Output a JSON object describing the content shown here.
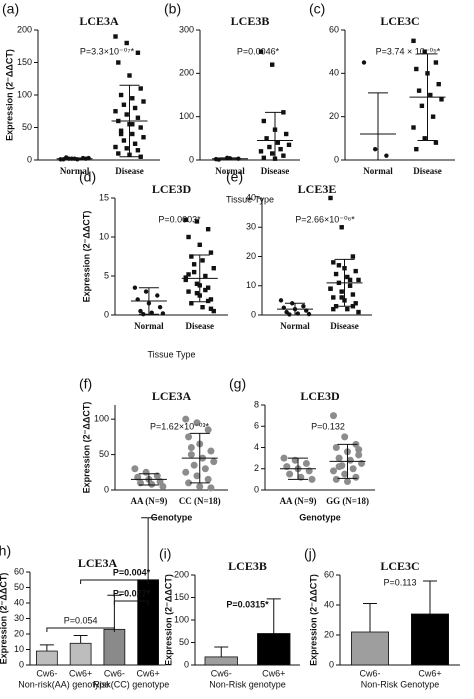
{
  "chart_data": [
    {
      "type": "strip",
      "label": "(a)",
      "title": "LCE3A",
      "annotation": "P=3.3×10⁻⁰⁷*",
      "ylabel": "Expression (2⁻ΔΔCT)",
      "ylim": [
        0,
        200
      ],
      "yticks": [
        0,
        50,
        100,
        150,
        200
      ],
      "groups": [
        {
          "name": "Normal",
          "marker": "circle",
          "color": "#111111",
          "values": [
            1,
            2,
            3,
            1,
            2,
            2,
            4,
            1,
            3,
            2
          ],
          "mean": 2,
          "sd": 1
        },
        {
          "name": "Disease",
          "marker": "square",
          "color": "#111111",
          "values": [
            190,
            180,
            165,
            150,
            130,
            110,
            100,
            95,
            90,
            85,
            80,
            75,
            70,
            65,
            60,
            55,
            50,
            45,
            40,
            35,
            30,
            25,
            20,
            18,
            15,
            10,
            8,
            5,
            40,
            55
          ],
          "mean": 60,
          "sd": 55
        }
      ]
    },
    {
      "type": "strip",
      "label": "(b)",
      "title": "LCE3B",
      "annotation": "P=0.0046*",
      "xlabel": "Tissue Type",
      "ylim": [
        0,
        300
      ],
      "yticks": [
        0,
        100,
        200,
        300
      ],
      "groups": [
        {
          "name": "Normal",
          "marker": "circle",
          "color": "#111111",
          "values": [
            2,
            5,
            3,
            1,
            4
          ],
          "mean": 3,
          "sd": 2
        },
        {
          "name": "Disease",
          "marker": "square",
          "color": "#111111",
          "values": [
            250,
            220,
            110,
            90,
            70,
            60,
            50,
            40,
            35,
            30,
            25,
            20,
            15,
            10,
            5,
            3
          ],
          "mean": 45,
          "sd": 65
        }
      ]
    },
    {
      "type": "strip",
      "label": "(c)",
      "title": "LCE3C",
      "annotation": "P=3.74 × 10⁻⁰⁵*",
      "ylim": [
        0,
        60
      ],
      "yticks": [
        0,
        20,
        40,
        60
      ],
      "groups": [
        {
          "name": "Normal",
          "marker": "circle",
          "color": "#111111",
          "values": [
            45,
            5,
            2
          ],
          "mean": 12,
          "sd": 19
        },
        {
          "name": "Disease",
          "marker": "square",
          "color": "#111111",
          "values": [
            55,
            50,
            45,
            42,
            40,
            35,
            32,
            30,
            28,
            25,
            20,
            15,
            10,
            8,
            5
          ],
          "mean": 29,
          "sd": 20
        }
      ]
    },
    {
      "type": "strip",
      "label": "(d)",
      "title": "LCE3D",
      "annotation": "P=0.0003*",
      "ylabel": "Expression (2⁻ΔΔCT)",
      "xlabel": "Tissue Type",
      "ylim": [
        0,
        15
      ],
      "yticks": [
        0,
        5,
        10,
        15
      ],
      "groups": [
        {
          "name": "Normal",
          "marker": "circle",
          "color": "#111111",
          "values": [
            3.5,
            3,
            2.5,
            2,
            1.5,
            1,
            0.5,
            0.3,
            0.2,
            0.1
          ],
          "mean": 1.8,
          "sd": 1.7
        },
        {
          "name": "Disease",
          "marker": "square",
          "color": "#111111",
          "values": [
            12.2,
            12,
            11,
            10,
            9,
            8,
            7.5,
            7,
            6,
            5.5,
            5,
            4.5,
            4,
            3.5,
            3,
            2.5,
            2,
            1.5,
            1,
            0.5,
            6.5,
            3.2,
            4.8,
            2.8,
            1.8,
            5.2,
            3.8,
            0.8
          ],
          "mean": 4.7,
          "sd": 3
        }
      ]
    },
    {
      "type": "strip",
      "label": "(e)",
      "title": "LCE3E",
      "annotation": "P=2.66×10⁻⁰⁶*",
      "ylim": [
        0,
        40
      ],
      "yticks": [
        0,
        10,
        20,
        30,
        40
      ],
      "groups": [
        {
          "name": "Normal",
          "marker": "circle",
          "color": "#111111",
          "values": [
            5,
            4,
            3,
            2.5,
            2,
            1.5,
            1,
            0.5,
            0.3,
            0.2
          ],
          "mean": 2,
          "sd": 2
        },
        {
          "name": "Disease",
          "marker": "square",
          "color": "#111111",
          "values": [
            40,
            30,
            20,
            18,
            16,
            15,
            14,
            13,
            12,
            11,
            10,
            9,
            8,
            7,
            6,
            5,
            4,
            3,
            2,
            1,
            17,
            12,
            9,
            6,
            3,
            2
          ],
          "mean": 11,
          "sd": 8
        }
      ]
    },
    {
      "type": "strip",
      "label": "(f)",
      "title": "LCE3A",
      "annotation": "P=1.62×10⁻⁰³*",
      "ylabel": "Expression (2⁻ΔΔCT)",
      "xlabel": "Genotype",
      "ylim": [
        0,
        120
      ],
      "yticks": [
        0,
        50,
        100
      ],
      "groups": [
        {
          "name": "AA (N=9)",
          "marker": "circle",
          "color": "#8c8c8c",
          "values": [
            30,
            25,
            20,
            18,
            15,
            12,
            10,
            8,
            5
          ],
          "mean": 15,
          "sd": 8
        },
        {
          "name": "CC (N=18)",
          "marker": "circle",
          "color": "#8c8c8c",
          "values": [
            100,
            95,
            85,
            75,
            65,
            55,
            50,
            45,
            40,
            35,
            30,
            25,
            20,
            15,
            10,
            5,
            3,
            60
          ],
          "mean": 45,
          "sd": 35
        }
      ]
    },
    {
      "type": "strip",
      "label": "(g)",
      "title": "LCE3D",
      "annotation": "P=0.132",
      "xlabel": "Genotype",
      "ylim": [
        0,
        8
      ],
      "yticks": [
        0,
        2,
        4,
        6,
        8
      ],
      "groups": [
        {
          "name": "AA (N=9)",
          "marker": "circle",
          "color": "#8c8c8c",
          "values": [
            3,
            2.8,
            2.5,
            2.2,
            2,
            1.8,
            1.5,
            1.2,
            1
          ],
          "mean": 2,
          "sd": 1
        },
        {
          "name": "GG (N=18)",
          "marker": "circle",
          "color": "#8c8c8c",
          "values": [
            7,
            5,
            4.3,
            4,
            3.6,
            3.3,
            3,
            2.8,
            2.5,
            2.3,
            2,
            1.8,
            1.5,
            1.2,
            1,
            0.8,
            3.8,
            2.2
          ],
          "mean": 2.7,
          "sd": 1.6
        }
      ]
    },
    {
      "type": "bar",
      "label": "(h)",
      "title": "LCE3A",
      "ylabel": "Expression (2⁻ΔΔCT)",
      "ylim": [
        0,
        60
      ],
      "yticks": [
        0,
        10,
        20,
        30,
        40,
        50,
        60
      ],
      "categories": [
        "Cw6-",
        "Cw6+",
        "Cw6-",
        "Cw6+"
      ],
      "values": [
        9,
        14,
        23,
        55
      ],
      "errors": [
        4,
        5,
        22,
        40
      ],
      "colors": [
        "#bdbdbd",
        "#bdbdbd",
        "#8a8a8a",
        "#000000"
      ],
      "group_labels": [
        "Non-risk(AA) genotype",
        "Risk(CC) genotype"
      ],
      "annotations": [
        "P=0.054",
        "P=0.004*",
        "P=0.027*"
      ]
    },
    {
      "type": "bar",
      "label": "(i)",
      "title": "LCE3B",
      "ylabel": "Expression (2⁻ΔΔCT)",
      "ylim": [
        0,
        200
      ],
      "yticks": [
        0,
        50,
        100,
        150,
        200
      ],
      "categories": [
        "Cw6-",
        "Cw6+"
      ],
      "values": [
        18,
        70
      ],
      "errors": [
        22,
        77
      ],
      "colors": [
        "#9e9e9e",
        "#000000"
      ],
      "group_labels": [
        "Non-Risk genotype"
      ],
      "annotations": [
        "P=0.0315*"
      ]
    },
    {
      "type": "bar",
      "label": "(j)",
      "title": "LCE3C",
      "ylabel": "Expression (2⁻ΔΔCT)",
      "ylim": [
        0,
        60
      ],
      "yticks": [
        0,
        20,
        40,
        60
      ],
      "categories": [
        "Cw6-",
        "Cw6+"
      ],
      "values": [
        22,
        34
      ],
      "errors": [
        19,
        22
      ],
      "colors": [
        "#9e9e9e",
        "#000000"
      ],
      "group_labels": [
        "Non-Risk Genotype"
      ],
      "annotations": [
        "P=0.113"
      ]
    }
  ]
}
